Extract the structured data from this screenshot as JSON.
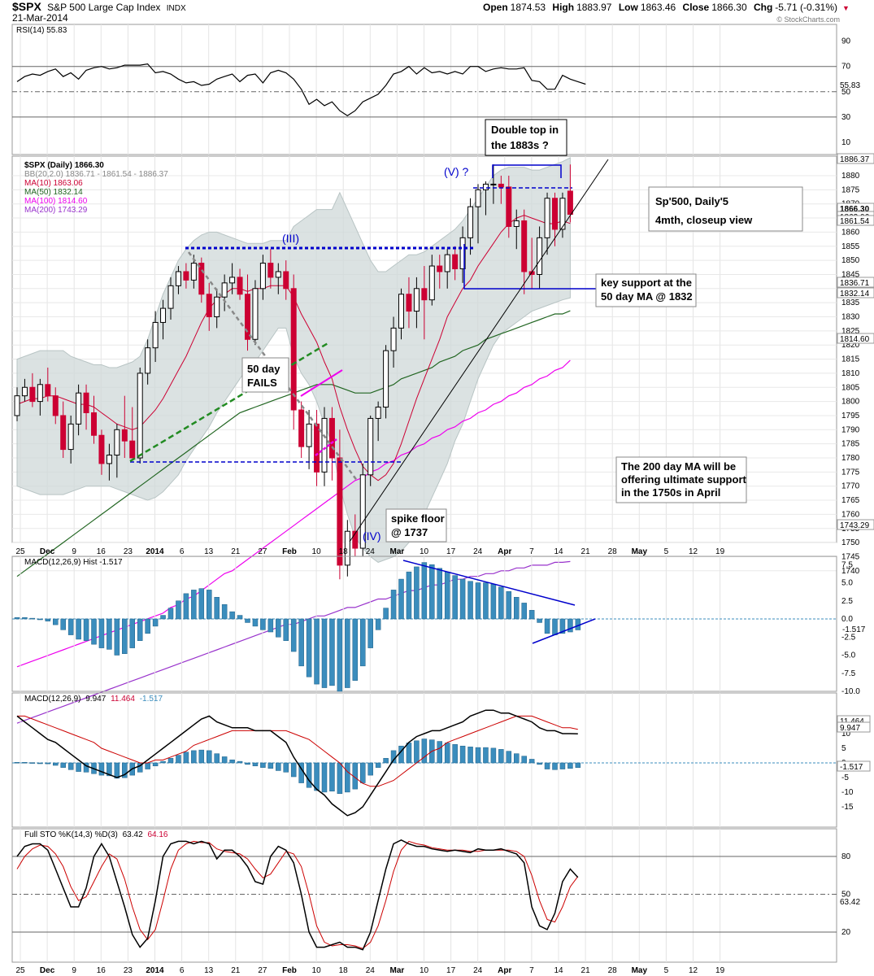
{
  "header": {
    "symbol": "$SPX",
    "name": "S&P 500 Large Cap Index",
    "exchange": "INDX",
    "date": "21-Mar-2014",
    "open_label": "Open",
    "open": "1874.53",
    "high_label": "High",
    "high": "1883.97",
    "low_label": "Low",
    "low": "1863.46",
    "close_label": "Close",
    "close": "1866.30",
    "chg_label": "Chg",
    "chg": "-5.71 (-0.31%)",
    "chg_arrow": "▼",
    "watermark": "© StockCharts.com"
  },
  "colors": {
    "up": "#000000",
    "down": "#cc0033",
    "ma10": "#cc0033",
    "ma50": "#226622",
    "ma100": "#ee00ee",
    "ma200": "#9933cc",
    "bb": "#cfd8d8",
    "hist": "#3b8dbd",
    "annot": "#0000cc",
    "green_dash": "#228b22"
  },
  "x_labels": [
    "25",
    "Dec",
    "9",
    "16",
    "23",
    "2014",
    "6",
    "13",
    "21",
    "27",
    "Feb",
    "10",
    "18",
    "24",
    "Mar",
    "10",
    "17",
    "24",
    "Apr",
    "7",
    "14",
    "21",
    "28",
    "May",
    "5",
    "12",
    "19"
  ],
  "rsi": {
    "legend": "RSI(14) 55.83",
    "last_value": "55.83",
    "ticks": [
      "90",
      "70",
      "50",
      "30",
      "10"
    ],
    "values": [
      58,
      62,
      64,
      63,
      66,
      68,
      62,
      65,
      60,
      67,
      69,
      70,
      68,
      69,
      71,
      71,
      71,
      72,
      65,
      66,
      64,
      60,
      57,
      58,
      55,
      56,
      60,
      62,
      64,
      58,
      63,
      64,
      57,
      65,
      67,
      65,
      60,
      52,
      40,
      44,
      39,
      42,
      35,
      31,
      35,
      42,
      45,
      48,
      55,
      64,
      66,
      70,
      64,
      69,
      65,
      66,
      64,
      66,
      64,
      70,
      70,
      66,
      68,
      69,
      68,
      68,
      69,
      59,
      58,
      52,
      52,
      63,
      60,
      58,
      56
    ]
  },
  "main": {
    "legend_title": "$SPX (Daily) 1866.30",
    "legend_bb": "BB(20,2.0) 1836.71 - 1861.54 - 1886.37",
    "legend_ma10": "MA(10) 1863.06",
    "legend_ma50": "MA(50) 1832.14",
    "legend_ma100": "MA(100) 1814.60",
    "legend_ma200": "MA(200) 1743.29",
    "ticks": [
      "1880",
      "1875",
      "1870",
      "1865",
      "1860",
      "1855",
      "1850",
      "1845",
      "1840",
      "1835",
      "1830",
      "1825",
      "1820",
      "1815",
      "1810",
      "1805",
      "1800",
      "1795",
      "1790",
      "1785",
      "1780",
      "1775",
      "1770",
      "1765",
      "1760",
      "1755",
      "1750",
      "1745",
      "1740"
    ],
    "price_tags": [
      "1886.37",
      "1866.30",
      "1863.06",
      "1861.54",
      "1836.71",
      "1832.14",
      "1814.60",
      "1743.29"
    ],
    "candles": [
      [
        1795,
        1805,
        1793,
        1802
      ],
      [
        1802,
        1808,
        1800,
        1805
      ],
      [
        1805,
        1810,
        1798,
        1800
      ],
      [
        1800,
        1808,
        1795,
        1806
      ],
      [
        1806,
        1812,
        1800,
        1802
      ],
      [
        1802,
        1805,
        1792,
        1795
      ],
      [
        1795,
        1800,
        1780,
        1783
      ],
      [
        1783,
        1795,
        1778,
        1792
      ],
      [
        1792,
        1806,
        1788,
        1803
      ],
      [
        1803,
        1806,
        1790,
        1796
      ],
      [
        1796,
        1802,
        1785,
        1788
      ],
      [
        1788,
        1790,
        1774,
        1778
      ],
      [
        1778,
        1785,
        1772,
        1781
      ],
      [
        1781,
        1792,
        1773,
        1790
      ],
      [
        1790,
        1802,
        1780,
        1786
      ],
      [
        1786,
        1798,
        1780,
        1780
      ],
      [
        1780,
        1812,
        1778,
        1810
      ],
      [
        1810,
        1822,
        1806,
        1819
      ],
      [
        1819,
        1832,
        1814,
        1828
      ],
      [
        1828,
        1836,
        1822,
        1833
      ],
      [
        1833,
        1844,
        1829,
        1841
      ],
      [
        1841,
        1848,
        1838,
        1846
      ],
      [
        1846,
        1849,
        1840,
        1843
      ],
      [
        1843,
        1852,
        1840,
        1849
      ],
      [
        1849,
        1851,
        1835,
        1838
      ],
      [
        1838,
        1842,
        1825,
        1830
      ],
      [
        1830,
        1840,
        1826,
        1837
      ],
      [
        1837,
        1845,
        1832,
        1842
      ],
      [
        1842,
        1849,
        1838,
        1844
      ],
      [
        1844,
        1847,
        1836,
        1838
      ],
      [
        1838,
        1845,
        1818,
        1822
      ],
      [
        1822,
        1843,
        1820,
        1840
      ],
      [
        1840,
        1852,
        1836,
        1849
      ],
      [
        1849,
        1854,
        1840,
        1844
      ],
      [
        1844,
        1849,
        1838,
        1846
      ],
      [
        1846,
        1850,
        1836,
        1840
      ],
      [
        1840,
        1845,
        1790,
        1797
      ],
      [
        1797,
        1800,
        1780,
        1784
      ],
      [
        1784,
        1797,
        1776,
        1792
      ],
      [
        1792,
        1797,
        1770,
        1775
      ],
      [
        1775,
        1798,
        1770,
        1794
      ],
      [
        1794,
        1798,
        1772,
        1780
      ],
      [
        1780,
        1790,
        1737,
        1742
      ],
      [
        1742,
        1758,
        1738,
        1754
      ],
      [
        1754,
        1760,
        1745,
        1748
      ],
      [
        1748,
        1778,
        1745,
        1774
      ],
      [
        1774,
        1795,
        1770,
        1794
      ],
      [
        1794,
        1800,
        1786,
        1798
      ],
      [
        1798,
        1820,
        1794,
        1818
      ],
      [
        1818,
        1830,
        1812,
        1826
      ],
      [
        1826,
        1840,
        1822,
        1838
      ],
      [
        1838,
        1844,
        1826,
        1832
      ],
      [
        1832,
        1844,
        1826,
        1840
      ],
      [
        1840,
        1848,
        1822,
        1836
      ],
      [
        1836,
        1852,
        1834,
        1848
      ],
      [
        1848,
        1852,
        1840,
        1846
      ],
      [
        1846,
        1854,
        1840,
        1852
      ],
      [
        1852,
        1855,
        1843,
        1847
      ],
      [
        1847,
        1862,
        1842,
        1858
      ],
      [
        1858,
        1872,
        1852,
        1869
      ],
      [
        1869,
        1877,
        1856,
        1875
      ],
      [
        1875,
        1878,
        1866,
        1877
      ],
      [
        1877,
        1884,
        1870,
        1877
      ],
      [
        1877,
        1880,
        1870,
        1876
      ],
      [
        1876,
        1880,
        1858,
        1862
      ],
      [
        1862,
        1868,
        1854,
        1864
      ],
      [
        1864,
        1868,
        1838,
        1846
      ],
      [
        1846,
        1858,
        1840,
        1845
      ],
      [
        1845,
        1862,
        1840,
        1858
      ],
      [
        1858,
        1874,
        1852,
        1872
      ],
      [
        1872,
        1874,
        1855,
        1861
      ],
      [
        1861,
        1874,
        1858,
        1872
      ],
      [
        1874.53,
        1883.97,
        1863.46,
        1866.3
      ]
    ],
    "bb_upper": [
      1815,
      1816,
      1817,
      1818,
      1818,
      1818,
      1818,
      1816,
      1815,
      1814,
      1813,
      1813,
      1812,
      1812,
      1813,
      1814,
      1816,
      1822,
      1830,
      1838,
      1844,
      1850,
      1854,
      1857,
      1859,
      1860,
      1860,
      1859,
      1858,
      1857,
      1856,
      1856,
      1856,
      1857,
      1857,
      1857,
      1862,
      1864,
      1866,
      1868,
      1868,
      1868,
      1874,
      1868,
      1862,
      1856,
      1850,
      1846,
      1846,
      1848,
      1850,
      1852,
      1852,
      1853,
      1855,
      1857,
      1859,
      1861,
      1864,
      1868,
      1872,
      1876,
      1880,
      1882,
      1883,
      1883,
      1883,
      1882,
      1882,
      1883,
      1884,
      1885,
      1886.37
    ],
    "bb_lower": [
      1770,
      1769,
      1768,
      1767,
      1767,
      1767,
      1767,
      1768,
      1769,
      1770,
      1770,
      1770,
      1770,
      1769,
      1768,
      1767,
      1766,
      1765,
      1766,
      1768,
      1771,
      1774,
      1779,
      1783,
      1787,
      1791,
      1796,
      1800,
      1804,
      1808,
      1812,
      1814,
      1818,
      1822,
      1826,
      1826,
      1816,
      1810,
      1806,
      1800,
      1792,
      1785,
      1770,
      1760,
      1752,
      1748,
      1745,
      1743,
      1744,
      1745,
      1747,
      1750,
      1755,
      1760,
      1766,
      1772,
      1778,
      1786,
      1792,
      1800,
      1808,
      1814,
      1820,
      1824,
      1826,
      1828,
      1830,
      1832,
      1833,
      1834,
      1835,
      1836,
      1836.71
    ],
    "ma10": [
      1799,
      1800,
      1801,
      1801,
      1802,
      1802,
      1801,
      1800,
      1799,
      1799,
      1798,
      1796,
      1794,
      1792,
      1791,
      1790,
      1791,
      1794,
      1797,
      1801,
      1806,
      1811,
      1816,
      1822,
      1828,
      1833,
      1836,
      1838,
      1840,
      1840,
      1839,
      1840,
      1840,
      1841,
      1841,
      1841,
      1837,
      1831,
      1826,
      1821,
      1814,
      1808,
      1798,
      1790,
      1783,
      1777,
      1774,
      1772,
      1774,
      1778,
      1785,
      1793,
      1801,
      1808,
      1815,
      1822,
      1830,
      1835,
      1840,
      1843,
      1848,
      1852,
      1856,
      1860,
      1863,
      1865,
      1866,
      1865,
      1864,
      1863,
      1863,
      1864,
      1863.06
    ],
    "ma50": [
      1738,
      1740,
      1742,
      1744,
      1746,
      1748,
      1750,
      1752,
      1754,
      1756,
      1758,
      1760,
      1762,
      1764,
      1766,
      1768,
      1770,
      1772,
      1774,
      1776,
      1778,
      1780,
      1782,
      1784,
      1786,
      1788,
      1790,
      1792,
      1794,
      1796,
      1797,
      1798,
      1799,
      1800,
      1801,
      1802,
      1803,
      1804,
      1805,
      1806,
      1806,
      1806,
      1805,
      1804,
      1803,
      1803,
      1803,
      1804,
      1805,
      1806,
      1808,
      1809,
      1810,
      1811,
      1812,
      1814,
      1815,
      1816,
      1818,
      1819,
      1820,
      1822,
      1823,
      1824,
      1825,
      1826,
      1827,
      1828,
      1829,
      1830,
      1831,
      1831,
      1832.14
    ],
    "ma100": [
      1706,
      1707,
      1708,
      1709,
      1710,
      1711,
      1712,
      1713,
      1714,
      1715,
      1716,
      1717,
      1718,
      1719,
      1720,
      1721,
      1722,
      1723,
      1724,
      1725,
      1727,
      1728,
      1730,
      1731,
      1733,
      1735,
      1737,
      1739,
      1740,
      1742,
      1744,
      1746,
      1748,
      1750,
      1752,
      1754,
      1756,
      1758,
      1760,
      1762,
      1764,
      1766,
      1768,
      1770,
      1772,
      1773,
      1775,
      1776,
      1778,
      1779,
      1781,
      1782,
      1784,
      1785,
      1787,
      1788,
      1790,
      1791,
      1793,
      1794,
      1796,
      1797,
      1799,
      1800,
      1802,
      1803,
      1805,
      1806,
      1808,
      1809,
      1811,
      1812,
      1814.6
    ],
    "ma200": [
      1686,
      1687,
      1688,
      1689,
      1690,
      1691,
      1692,
      1693,
      1694,
      1695,
      1696,
      1697,
      1698,
      1699,
      1700,
      1701,
      1702,
      1703,
      1704,
      1705,
      1706,
      1707,
      1708,
      1709,
      1710,
      1711,
      1712,
      1713,
      1714,
      1715,
      1716,
      1717,
      1718,
      1719,
      1720,
      1721,
      1721,
      1722,
      1723,
      1724,
      1724,
      1725,
      1726,
      1727,
      1727,
      1728,
      1729,
      1730,
      1730,
      1731,
      1732,
      1733,
      1733,
      1734,
      1735,
      1735,
      1736,
      1737,
      1737,
      1738,
      1738,
      1739,
      1739,
      1740,
      1740,
      1741,
      1741,
      1742,
      1742,
      1742,
      1743,
      1743,
      1743.29
    ]
  },
  "annotations": {
    "wave3": "(III)",
    "wave4": "(IV)",
    "wave5": "(V) ?",
    "double_top_l1": "Double top in",
    "double_top_l2": "the 1883s ?",
    "title_l1": "Sp'500, Daily'5",
    "title_l2": "4mth, closeup view",
    "key_support_l1": "key support at the",
    "key_support_l2": "50 day MA @ 1832",
    "fails_l1": "50 day",
    "fails_l2": "FAILS",
    "ma200_l1": "The 200 day MA will be",
    "ma200_l2": "offering ultimate support",
    "ma200_l3": "in the 1750s in April",
    "spike_l1": "spike floor",
    "spike_l2": "@ 1737"
  },
  "macd_hist": {
    "legend": "MACD(12,26,9) Hist -1.517",
    "last_value": "-1.517",
    "ticks": [
      "7.5",
      "5.0",
      "2.5",
      "0.0",
      "-2.5",
      "-5.0",
      "-7.5",
      "-10.0"
    ],
    "values": [
      0.2,
      0.2,
      0.1,
      0,
      -0.3,
      -0.8,
      -1.5,
      -2.2,
      -2.8,
      -3.0,
      -3.5,
      -4.0,
      -4.2,
      -5.0,
      -4.8,
      -4.0,
      -3.0,
      -2.0,
      -1.0,
      0.5,
      1.5,
      2.5,
      3.5,
      4.0,
      4.2,
      4.0,
      3.0,
      2.0,
      1.0,
      0.5,
      -0.5,
      -1.0,
      -1.5,
      -1.8,
      -2.5,
      -3.0,
      -4.5,
      -6.5,
      -8.0,
      -9.0,
      -9.5,
      -9.2,
      -10.0,
      -9.5,
      -8.5,
      -6.5,
      -4.0,
      -1.5,
      1.5,
      4.0,
      5.5,
      6.5,
      7.2,
      7.8,
      7.5,
      7.0,
      6.5,
      6.0,
      5.5,
      5.2,
      5.0,
      5.0,
      4.8,
      4.4,
      3.8,
      3.0,
      2.2,
      1.2,
      -0.5,
      -2.0,
      -2.2,
      -2.0,
      -1.8,
      -1.517
    ]
  },
  "macd": {
    "legend_prefix": "MACD(12,26,9)",
    "legend_macd": "9.947",
    "legend_signal": "11.464",
    "legend_hist": "-1.517",
    "tags": [
      "11.464",
      "9.947",
      "-1.517"
    ],
    "ticks": [
      "15",
      "10",
      "5",
      "0",
      "-5",
      "-10",
      "-15"
    ],
    "macd_values": [
      16,
      14,
      12,
      10,
      8,
      7,
      5,
      3,
      1,
      -1,
      -2,
      -3,
      -4,
      -5,
      -4,
      -2,
      -1,
      1,
      3,
      5,
      7,
      9,
      11,
      13,
      15,
      16,
      14,
      13,
      12,
      12,
      12,
      11,
      11,
      11,
      9,
      7,
      2,
      -2,
      -6,
      -9,
      -11,
      -14,
      -16,
      -18,
      -17,
      -15,
      -11,
      -7,
      -3,
      1,
      4,
      7,
      9,
      10,
      11,
      11,
      12,
      13,
      14,
      16,
      17,
      18,
      18,
      17,
      17,
      16,
      15,
      14,
      12,
      11,
      11,
      10,
      10,
      9.947
    ],
    "signal_values": [
      16,
      16,
      15,
      14,
      13,
      12,
      11,
      10,
      9,
      8,
      7,
      5,
      4,
      3,
      2,
      1,
      0,
      0,
      1,
      1,
      2,
      3,
      4,
      6,
      7,
      8,
      9,
      10,
      11,
      11,
      11,
      11,
      11,
      11,
      11,
      11,
      10,
      9,
      8,
      6,
      4,
      2,
      0,
      -3,
      -5,
      -7,
      -8,
      -8,
      -7,
      -6,
      -4,
      -2,
      0,
      2,
      4,
      5,
      7,
      8,
      9,
      10,
      11,
      12,
      13,
      14,
      15,
      16,
      16,
      16,
      15,
      14,
      13,
      12,
      12,
      11.464
    ]
  },
  "sto": {
    "legend_prefix": "Full STO %K(14,3) %D(3)",
    "legend_k": "63.42",
    "legend_d": "64.16",
    "last_value": "63.42",
    "ticks": [
      "80",
      "50",
      "20"
    ],
    "k_values": [
      80,
      88,
      90,
      90,
      85,
      70,
      55,
      40,
      40,
      55,
      80,
      90,
      80,
      60,
      40,
      18,
      8,
      15,
      45,
      80,
      90,
      92,
      92,
      90,
      92,
      90,
      78,
      85,
      85,
      80,
      72,
      60,
      58,
      80,
      88,
      85,
      75,
      50,
      20,
      8,
      8,
      10,
      12,
      8,
      8,
      6,
      20,
      45,
      70,
      90,
      93,
      90,
      88,
      88,
      86,
      85,
      84,
      85,
      84,
      83,
      86,
      85,
      85,
      86,
      84,
      82,
      75,
      40,
      25,
      22,
      35,
      60,
      70,
      63.42
    ],
    "d_values": [
      70,
      80,
      86,
      89,
      88,
      82,
      72,
      56,
      45,
      48,
      60,
      72,
      82,
      78,
      62,
      40,
      22,
      14,
      22,
      45,
      70,
      85,
      90,
      92,
      91,
      91,
      86,
      84,
      83,
      82,
      78,
      70,
      63,
      66,
      75,
      84,
      82,
      72,
      50,
      25,
      12,
      9,
      10,
      10,
      9,
      7,
      12,
      25,
      45,
      68,
      85,
      92,
      90,
      89,
      87,
      86,
      85,
      85,
      85,
      84,
      84,
      85,
      85,
      85,
      85,
      84,
      80,
      65,
      45,
      30,
      28,
      40,
      56,
      64.16
    ]
  }
}
